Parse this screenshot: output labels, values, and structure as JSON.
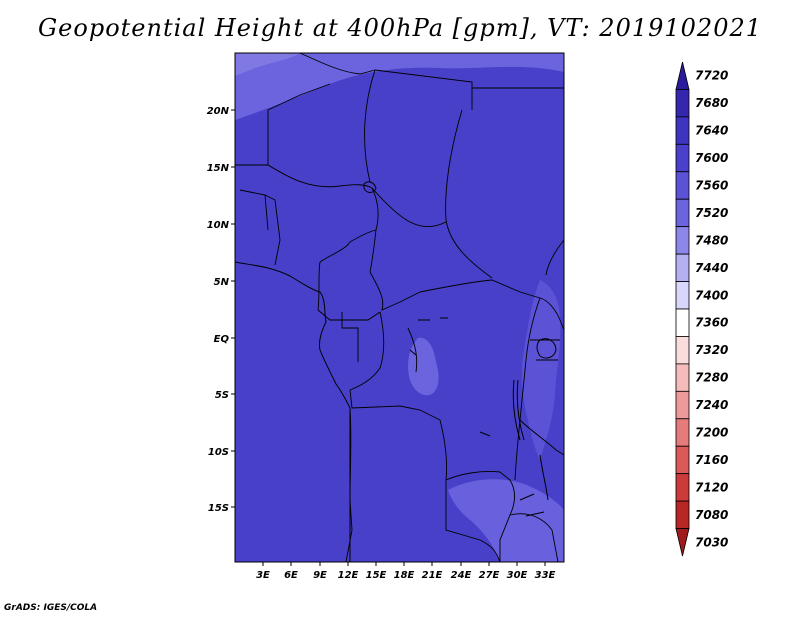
{
  "title": "Geopotential Height at 400hPa [gpm], VT: 2019102021",
  "credit": "GrADS: IGES/COLA",
  "lat_labels": [
    "20N",
    "15N",
    "10N",
    "5N",
    "EQ",
    "5S",
    "10S",
    "15S"
  ],
  "lon_labels": [
    "3E",
    "6E",
    "9E",
    "12E",
    "15E",
    "18E",
    "21E",
    "24E",
    "27E",
    "30E",
    "33E"
  ],
  "colorbar": {
    "labels": [
      "7720",
      "7680",
      "7640",
      "7600",
      "7560",
      "7520",
      "7480",
      "7440",
      "7400",
      "7360",
      "7320",
      "7280",
      "7240",
      "7200",
      "7160",
      "7120",
      "7080",
      "7030"
    ],
    "colors": [
      "#2a1a9c",
      "#3526ae",
      "#3e34bf",
      "#4a40cc",
      "#5b52d6",
      "#6c64de",
      "#8d87ea",
      "#b4b0f2",
      "#d8d6fa",
      "#ffffff",
      "#fbdcdc",
      "#f6bcbc",
      "#ef9a9a",
      "#e57b7b",
      "#da5a5a",
      "#cc3a3a",
      "#b82626",
      "#a01c1c"
    ]
  },
  "map": {
    "background_color": "#4840c8",
    "field_levels": [
      "7560",
      "7600"
    ]
  }
}
